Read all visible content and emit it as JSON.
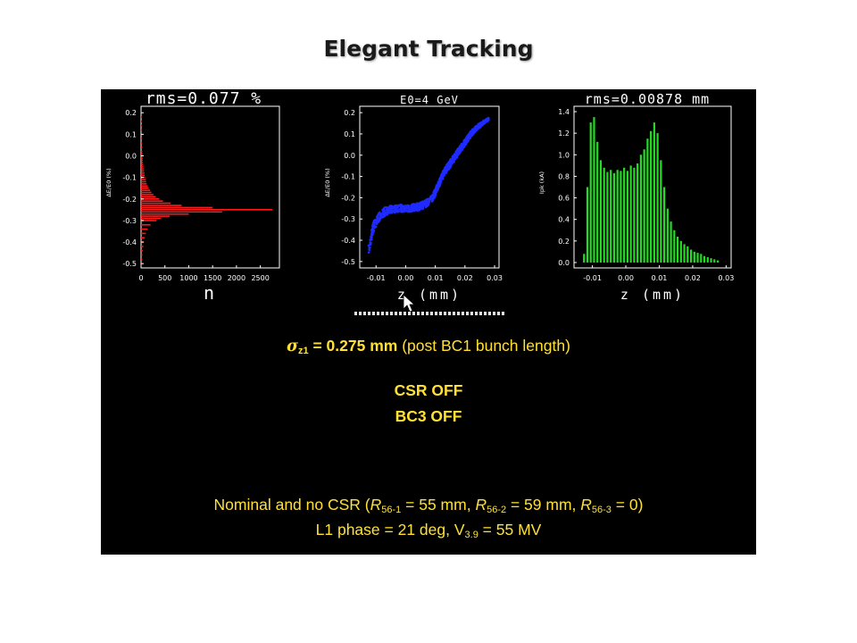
{
  "title": "Elegant Tracking",
  "colors": {
    "hist1": "#ff1a1a",
    "scatter": "#1f2bff",
    "hist3": "#22dd22",
    "text": "#ffe033",
    "panel": "#000000"
  },
  "cursor_icon": "arrow-cursor-icon",
  "chart_data": [
    {
      "type": "bar",
      "orientation": "horizontal",
      "title": "rms=0.077 %",
      "xlabel": "n",
      "ylabel": "ΔE/E0 (%)",
      "xticks": [
        "0",
        "500",
        "1000",
        "1500",
        "2000",
        "2500"
      ],
      "yticks": [
        "0.2",
        "0.1",
        "0.0",
        "-0.1",
        "-0.2",
        "-0.3",
        "-0.4",
        "-0.5"
      ],
      "xlim": [
        0,
        2900
      ],
      "ylim": [
        -0.52,
        0.23
      ],
      "y": [
        -0.5,
        -0.48,
        -0.46,
        -0.44,
        -0.42,
        -0.4,
        -0.38,
        -0.36,
        -0.34,
        -0.32,
        -0.3,
        -0.29,
        -0.28,
        -0.27,
        -0.26,
        -0.25,
        -0.24,
        -0.23,
        -0.22,
        -0.21,
        -0.2,
        -0.19,
        -0.18,
        -0.17,
        -0.16,
        -0.15,
        -0.14,
        -0.13,
        -0.12,
        -0.11,
        -0.1,
        -0.09,
        -0.08,
        -0.07,
        -0.06,
        -0.05,
        -0.04,
        -0.03,
        -0.02,
        -0.01,
        0.0,
        0.01,
        0.02,
        0.04,
        0.06,
        0.08,
        0.1,
        0.12,
        0.14,
        0.16,
        0.18,
        0.2
      ],
      "values": [
        20,
        25,
        30,
        40,
        50,
        60,
        80,
        100,
        140,
        200,
        320,
        420,
        600,
        1000,
        1700,
        2750,
        1500,
        850,
        620,
        460,
        380,
        310,
        260,
        220,
        190,
        160,
        140,
        120,
        105,
        95,
        85,
        75,
        70,
        62,
        55,
        50,
        45,
        42,
        38,
        35,
        32,
        30,
        28,
        25,
        22,
        20,
        18,
        15,
        12,
        10,
        8,
        6
      ]
    },
    {
      "type": "scatter",
      "title": "E0=4 GeV",
      "xlabel": "z (mm)",
      "ylabel": "ΔE/E0 (%)",
      "xticks": [
        "-0.01",
        "0.00",
        "0.01",
        "0.02",
        "0.03"
      ],
      "yticks": [
        "0.2",
        "0.1",
        "0.0",
        "-0.1",
        "-0.2",
        "-0.3",
        "-0.4",
        "-0.5"
      ],
      "xlim": [
        -0.0155,
        0.0315
      ],
      "ylim": [
        -0.53,
        0.23
      ],
      "x": [
        -0.0125,
        -0.011,
        -0.009,
        -0.007,
        -0.005,
        -0.003,
        -0.001,
        0.001,
        0.003,
        0.005,
        0.007,
        0.009,
        0.01,
        0.011,
        0.012,
        0.013,
        0.014,
        0.015,
        0.016,
        0.017,
        0.018,
        0.019,
        0.02,
        0.021,
        0.022,
        0.023,
        0.024,
        0.025,
        0.026,
        0.027,
        0.028
      ],
      "values": [
        -0.45,
        -0.34,
        -0.29,
        -0.265,
        -0.255,
        -0.25,
        -0.25,
        -0.25,
        -0.245,
        -0.24,
        -0.225,
        -0.2,
        -0.175,
        -0.14,
        -0.11,
        -0.08,
        -0.06,
        -0.04,
        -0.02,
        0.0,
        0.02,
        0.04,
        0.06,
        0.08,
        0.1,
        0.115,
        0.13,
        0.14,
        0.15,
        0.16,
        0.17
      ],
      "spread": [
        0.06,
        0.05,
        0.04,
        0.04,
        0.035,
        0.035,
        0.035,
        0.035,
        0.035,
        0.035,
        0.035,
        0.035,
        0.035,
        0.035,
        0.035,
        0.035,
        0.035,
        0.035,
        0.035,
        0.035,
        0.035,
        0.035,
        0.03,
        0.03,
        0.03,
        0.025,
        0.025,
        0.02,
        0.02,
        0.015,
        0.012
      ]
    },
    {
      "type": "bar",
      "title": "rms=0.00878 mm",
      "xlabel": "z (mm)",
      "ylabel": "Ipk (kA)",
      "xticks": [
        "-0.01",
        "0.00",
        "0.01",
        "0.02",
        "0.03"
      ],
      "yticks": [
        "1.4",
        "1.2",
        "1.0",
        "0.8",
        "0.6",
        "0.4",
        "0.2",
        "0.0"
      ],
      "xlim": [
        -0.0155,
        0.0315
      ],
      "ylim": [
        -0.05,
        1.45
      ],
      "x": [
        -0.0125,
        -0.0115,
        -0.0105,
        -0.0095,
        -0.0085,
        -0.0075,
        -0.0065,
        -0.0055,
        -0.0045,
        -0.0035,
        -0.0025,
        -0.0015,
        -0.0005,
        0.0005,
        0.0015,
        0.0025,
        0.0035,
        0.0045,
        0.0055,
        0.0065,
        0.0075,
        0.0085,
        0.0095,
        0.0105,
        0.0115,
        0.0125,
        0.0135,
        0.0145,
        0.0155,
        0.0165,
        0.0175,
        0.0185,
        0.0195,
        0.0205,
        0.0215,
        0.0225,
        0.0235,
        0.0245,
        0.0255,
        0.0265,
        0.0275
      ],
      "values": [
        0.08,
        0.7,
        1.3,
        1.35,
        1.12,
        0.95,
        0.88,
        0.84,
        0.86,
        0.83,
        0.86,
        0.85,
        0.88,
        0.85,
        0.9,
        0.88,
        0.92,
        1.0,
        1.05,
        1.15,
        1.22,
        1.3,
        1.2,
        0.95,
        0.7,
        0.5,
        0.38,
        0.3,
        0.24,
        0.2,
        0.17,
        0.15,
        0.12,
        0.1,
        0.09,
        0.08,
        0.06,
        0.05,
        0.04,
        0.03,
        0.02
      ]
    }
  ],
  "captions": {
    "sigma_symbol": "σ",
    "sigma_sub": "z1",
    "sigma_value": " = 0.275 mm",
    "sigma_desc": " (post BC1 bunch length)",
    "csr": "CSR OFF",
    "bc3": "BC3 OFF",
    "nominal_a": "Nominal and no CSR (",
    "r": "R",
    "r1_sub": "56-1",
    "r1_val": " = 55 mm, ",
    "r2_sub": "56-2",
    "r2_val": " = 59 mm, ",
    "r3_sub": "56-3",
    "r3_val": " = 0)",
    "phase_a": "L1 phase = 21 deg, V",
    "phase_sub": "3.9",
    "phase_b": " = 55 MV"
  }
}
